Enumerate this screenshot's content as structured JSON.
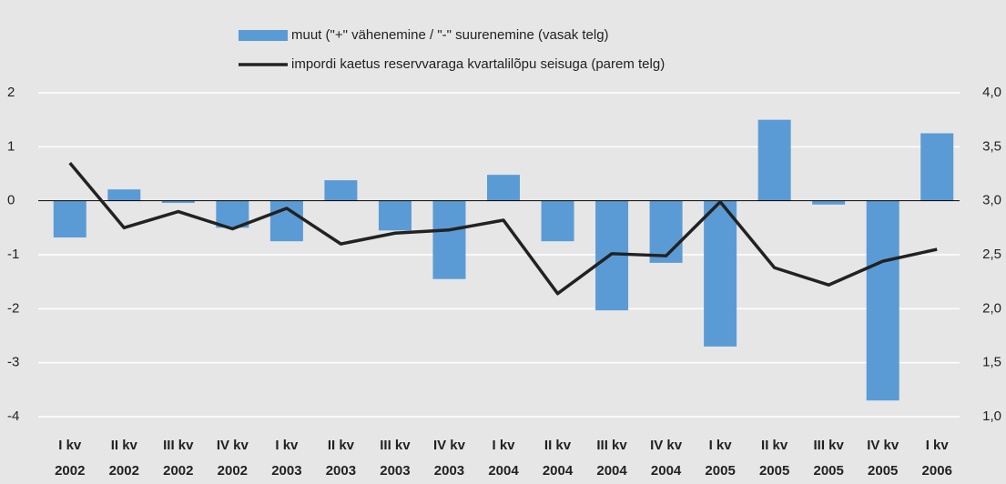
{
  "chart_data": {
    "type": "bar-line",
    "categories": [
      [
        "I kv",
        "2002"
      ],
      [
        "II kv",
        "2002"
      ],
      [
        "III kv",
        "2002"
      ],
      [
        "IV kv",
        "2002"
      ],
      [
        "I kv",
        "2003"
      ],
      [
        "II kv",
        "2003"
      ],
      [
        "III kv",
        "2003"
      ],
      [
        "IV kv",
        "2003"
      ],
      [
        "I kv",
        "2004"
      ],
      [
        "II kv",
        "2004"
      ],
      [
        "III kv",
        "2004"
      ],
      [
        "IV kv",
        "2004"
      ],
      [
        "I kv",
        "2005"
      ],
      [
        "II kv",
        "2005"
      ],
      [
        "III kv",
        "2005"
      ],
      [
        "IV kv",
        "2005"
      ],
      [
        "I kv",
        "2006"
      ]
    ],
    "series": [
      {
        "name": "muut (\"+\" vähenemine / \"-\" suurenemine (vasak telg)",
        "type": "bar",
        "color": "#5b9bd5",
        "values": [
          -0.68,
          0.21,
          -0.04,
          -0.5,
          -0.75,
          0.38,
          -0.55,
          -1.45,
          0.48,
          -0.75,
          -2.03,
          -1.15,
          -2.7,
          1.5,
          -0.07,
          -3.7,
          1.25
        ]
      },
      {
        "name": "impordi kaetus reservvaraga kvartalilõpu seisuga (parem telg)",
        "type": "line",
        "axis": "y2",
        "color": "#222222",
        "values": [
          3.35,
          2.75,
          2.9,
          2.74,
          2.93,
          2.6,
          2.7,
          2.73,
          2.82,
          2.14,
          2.51,
          2.49,
          2.99,
          2.38,
          2.22,
          2.44,
          2.55
        ]
      }
    ],
    "ylim": [
      -4,
      2
    ],
    "yticks": [
      -4,
      -3,
      -2,
      -1,
      0,
      1,
      2
    ],
    "y2lim": [
      1,
      4
    ],
    "y2ticks": [
      {
        "value": 1,
        "label": "1,0"
      },
      {
        "value": 1.5,
        "label": "1,5"
      },
      {
        "value": 2,
        "label": "2,0"
      },
      {
        "value": 2.5,
        "label": "2,5"
      },
      {
        "value": 3,
        "label": "3,0"
      },
      {
        "value": 3.5,
        "label": "3,5"
      },
      {
        "value": 4,
        "label": "4,0"
      }
    ],
    "grid": true
  }
}
